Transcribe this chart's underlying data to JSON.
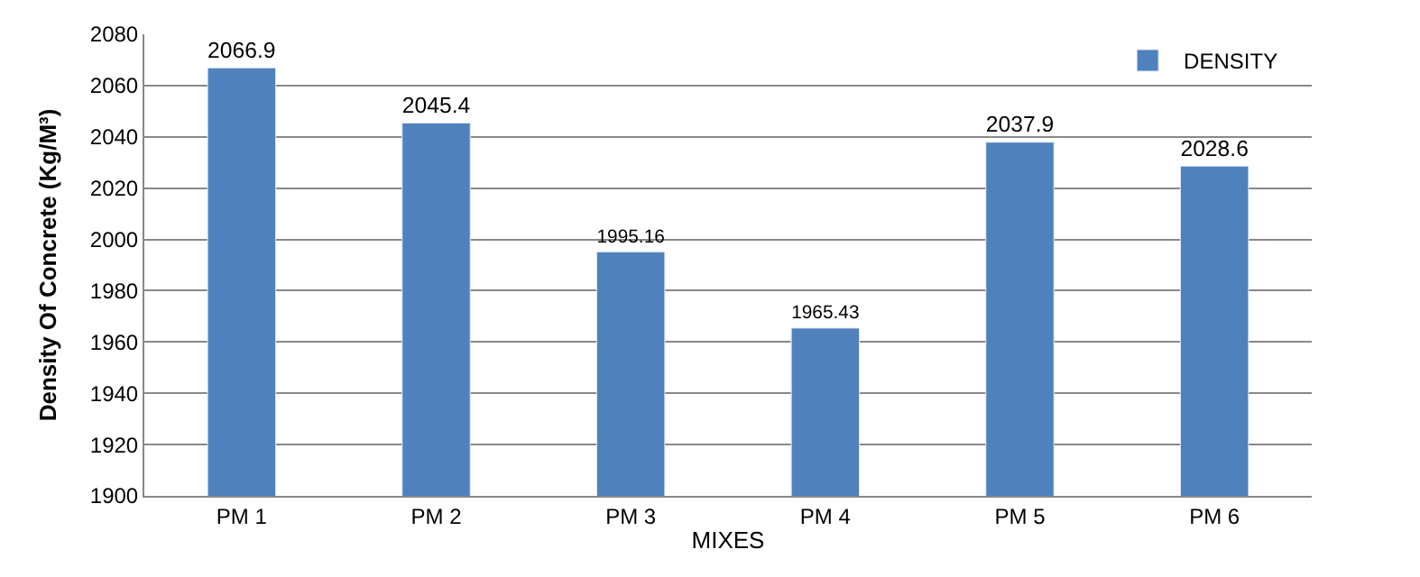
{
  "chart_data": {
    "type": "bar",
    "xlabel": "MIXES",
    "ylabel": "Density Of Concrete (Kg/M³)",
    "categories": [
      "PM 1",
      "PM 2",
      "PM 3",
      "PM 4",
      "PM 5",
      "PM 6"
    ],
    "series": [
      {
        "name": "DENSITY",
        "color": "#4f81bd",
        "values": [
          2066.9,
          2045.4,
          1995.16,
          1965.43,
          2037.9,
          2028.6
        ]
      }
    ],
    "ylim": [
      1900,
      2080
    ],
    "yticks": [
      1900,
      1920,
      1940,
      1960,
      1980,
      2000,
      2020,
      2040,
      2060,
      2080
    ],
    "grid": "y",
    "legend": "top right",
    "data_labels": true
  }
}
